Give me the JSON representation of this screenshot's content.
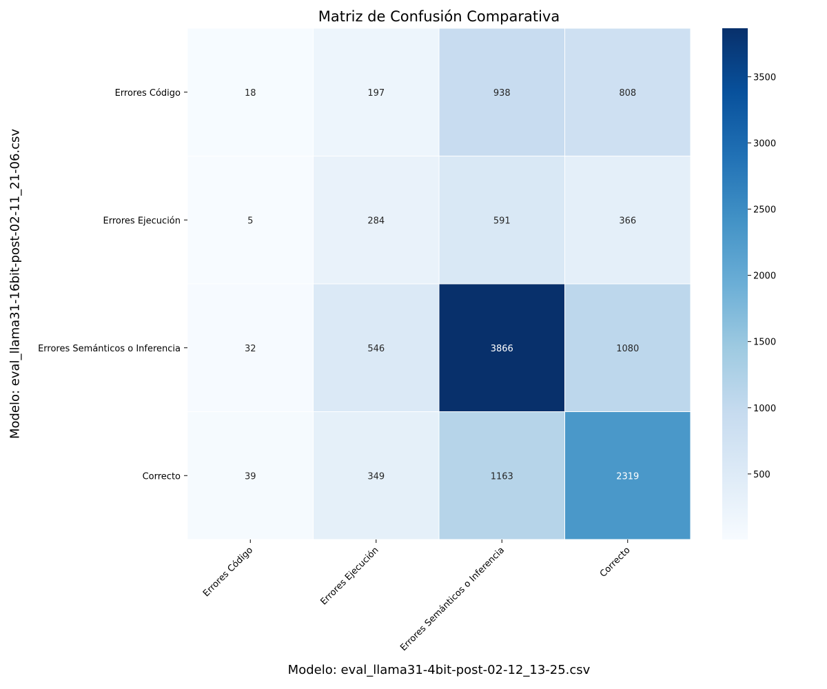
{
  "chart_data": {
    "type": "heatmap",
    "title": "Matriz de Confusión Comparativa",
    "xlabel": "Modelo: eval_llama31-4bit-post-02-12_13-25.csv",
    "ylabel": "Modelo: eval_llama31-16bit-post-02-11_21-06.csv",
    "x_categories": [
      "Errores Código",
      "Errores Ejecución",
      "Errores Semánticos o Inferencia",
      "Correcto"
    ],
    "y_categories": [
      "Errores Código",
      "Errores Ejecución",
      "Errores Semánticos o Inferencia",
      "Correcto"
    ],
    "values": [
      [
        18,
        197,
        938,
        808
      ],
      [
        5,
        284,
        591,
        366
      ],
      [
        32,
        546,
        3866,
        1080
      ],
      [
        39,
        349,
        1163,
        2319
      ]
    ],
    "colormap": "Blues",
    "vmin": 5,
    "vmax": 3866,
    "colorbar_ticks": [
      500,
      1000,
      1500,
      2000,
      2500,
      3000,
      3500
    ],
    "annotations": true,
    "grid": false
  }
}
